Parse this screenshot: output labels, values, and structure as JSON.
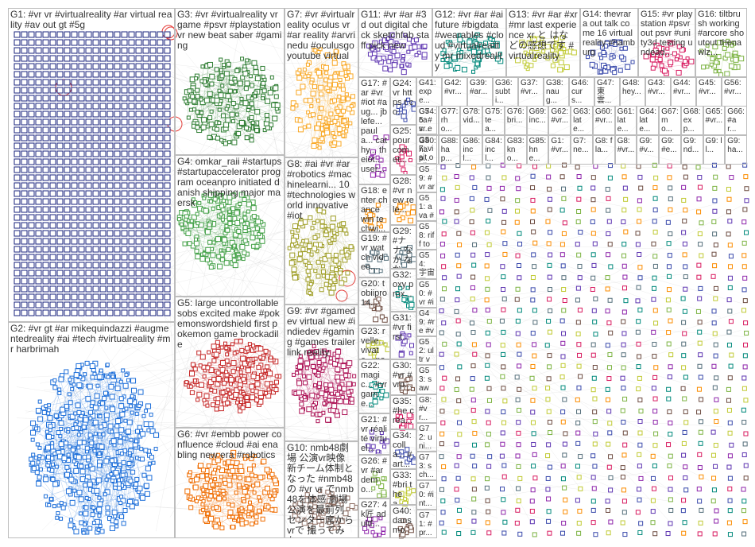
{
  "colors": {
    "G1": "#1a237e",
    "G2": "#1e6fd9",
    "G3": "#2e7d32",
    "G4": "#43a047",
    "G5": "#c62828",
    "G6": "#ef6c00",
    "G7": "#f9a825",
    "G8": "#9e9d24",
    "G9": "#ad1457",
    "G10": "#8d6e63",
    "edge": "#9e9e9e",
    "loop": "#e53935"
  },
  "groups": [
    {
      "id": "G1",
      "label": "G1: #vr vr #virtualreality #ar virtual reality #av out gt #5g"
    },
    {
      "id": "G2",
      "label": "G2: #vr gt #ar mikequindazzi #augmentedreality #ai #tech #virtualreality #mr harbrimah"
    },
    {
      "id": "G3",
      "label": "G3: #vr #virtualreality vr game #psvr #playstationvr new beat saber #gaming"
    },
    {
      "id": "G4",
      "label": "G4: omkar_raii #startups #startupaccelerator program oceanpro initiated danish shipping major maersk"
    },
    {
      "id": "G5",
      "label": "G5: large uncontrollable sobs excited make #pokemonswordshield first pokemon game brockadile"
    },
    {
      "id": "G6",
      "label": "G6: #vr #embb power confluence #cloud #ai enabling new era #robotics"
    },
    {
      "id": "G7",
      "label": "G7: #vr #virtualreality oculus vr #ar reality #arvrinedu #oculusgo youtube virtual"
    },
    {
      "id": "G8",
      "label": "G8: #ai #vr #ar #robotics #machinelearni... 10 #technologies world innovative #iot"
    },
    {
      "id": "G9",
      "label": "G9: #vr #gamedev virtual new #indiedev #gaming #games trailer link reality"
    },
    {
      "id": "G10",
      "label": "G10: nmb48劇場 公演vr映像 新チーム体制となった #nmb48 の #vr vr でnmb48を体感 劇場公演を最前列 センター席からvrで 撮ってみた..."
    },
    {
      "id": "G11",
      "label": "G11: #vr #ar #3d out digital check sketchfab staff pick new"
    },
    {
      "id": "G12",
      "label": "G12: #vr #ar #ai future #bigdata #wearables #cloud #virtualreality mr mixedreality"
    },
    {
      "id": "G13",
      "label": "G13: #vr #ar #xr #mr last experience xr と はなどの感想です #virtualreality"
    },
    {
      "id": "G14",
      "label": "G14: thevrara out talk come 16 virtual reality #hamburg"
    },
    {
      "id": "G15",
      "label": "G15: #vr playstation #psvr out psvr #unity3d testing undead..."
    },
    {
      "id": "G16",
      "label": "G16: tiltbrush working #arcore shoutout thenawlz..."
    },
    {
      "id": "G17",
      "label": "G17: #ar #vr #iot #aug... jblefe... paula... cathy... theiot... user..."
    },
    {
      "id": "G18",
      "label": "G18: enter chance win techwi..."
    },
    {
      "id": "G19",
      "label": "G19: #vr watch video..."
    },
    {
      "id": "G20",
      "label": "G20: tobiipro 14..."
    },
    {
      "id": "G21",
      "label": "G21: #vr réalité virtuel..."
    },
    {
      "id": "G22",
      "label": "G22: magic... #vr game..."
    },
    {
      "id": "G23",
      "label": "G23: rvelle... vivate... novo3..."
    },
    {
      "id": "G24",
      "label": "G24: vr https t co..."
    },
    {
      "id": "G25",
      "label": "G25: pour com et..."
    },
    {
      "id": "G26",
      "label": "G26: #vr #ar demo..."
    },
    {
      "id": "G27",
      "label": "G27: 4k匠 adultf..."
    },
    {
      "id": "G28",
      "label": "G28: #vr new rele..."
    },
    {
      "id": "G29",
      "label": "G29: #ナナ なか なか"
    },
    {
      "id": "G30",
      "label": "G30: #vr #vrp..."
    },
    {
      "id": "G31",
      "label": "G31: #vr first..."
    },
    {
      "id": "G32",
      "label": "G32: oxy prox..."
    },
    {
      "id": "G33",
      "label": "G33: #bri thea..."
    },
    {
      "id": "G34",
      "label": "G34: colla... #art..."
    },
    {
      "id": "G35",
      "label": "G35: #he crea..."
    },
    {
      "id": "G40",
      "label": "G40: dans mor..."
    }
  ],
  "small_groups": [
    "G41: expe...",
    "G42: #vr...",
    "G39: #ar...",
    "G36: subti...",
    "G37: #vr...",
    "G38: naug...",
    "G46: curs...",
    "G47: 東雲...",
    "G48: hey...",
    "G43: #vr...",
    "G44: #vr...",
    "G45: #vr...",
    "G56: #vr...",
    "G74: cas...",
    "G77: rho...",
    "G78: vid...",
    "G75: tea...",
    "G76: bri...",
    "G69: inc...",
    "G62: #vr...",
    "G63: late...",
    "G60: #vr...",
    "G61: late...",
    "G64: late...",
    "G67: mo...",
    "G68: exp...",
    "G65: #vr...",
    "G66: #ar...",
    "G80: hap...",
    "G88: hap...",
    "G86: incl...",
    "G84: incl...",
    "G83: kno...",
    "G85: hne...",
    "G1: #vr...",
    "G7: ne...",
    "G8: fla...",
    "G8: #vr...",
    "G9: #v...",
    "G9: #e...",
    "G9: nd...",
    "G9: ll...",
    "G9: ha..."
  ],
  "left_col": [
    "G55: #vr et...",
    "G57: visit onli...",
    "G59: #vr arv...",
    "G51: ava #oc...",
    "G58: riff top...",
    "G54: 宇宙 ロ...",
    "G50: #vr #ilt...",
    "G49: #re #vr...",
    "G52: ultr vr...",
    "G53: saw guy...",
    "G8: #vr...",
    "G72: uni...",
    "G73: sch...",
    "G70: #int...",
    "G71: #pr..."
  ]
}
